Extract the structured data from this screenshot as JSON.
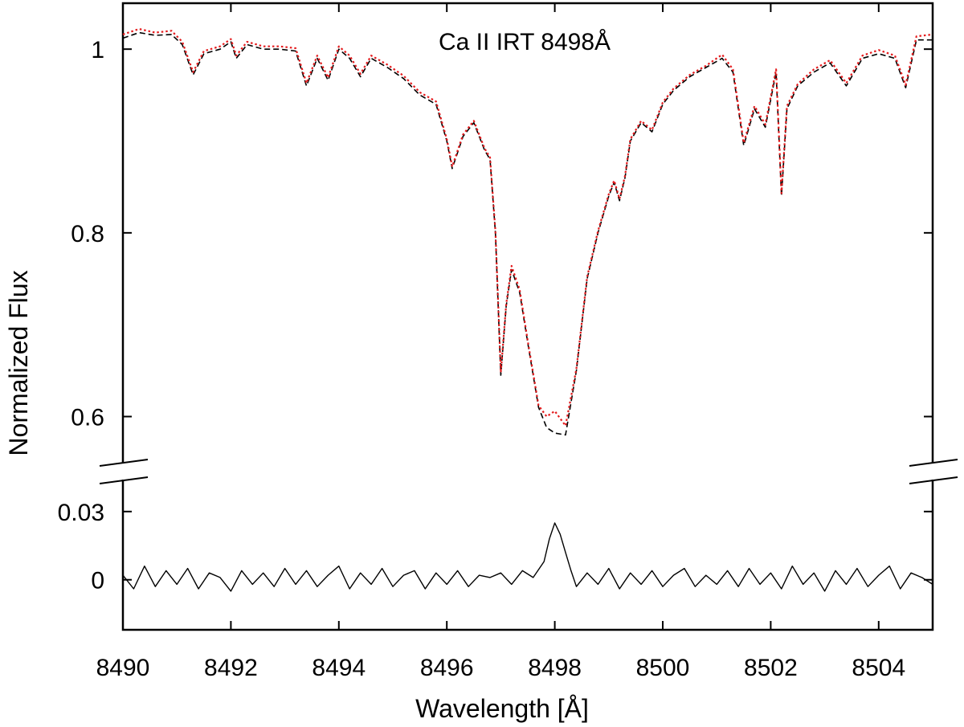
{
  "chart_data": {
    "type": "line",
    "title": "",
    "annotation": "Ca II IRT 8498Å",
    "xlabel": "Wavelength [Å]",
    "ylabel": "Normalized Flux",
    "xlim": [
      8490,
      8505
    ],
    "x_ticks": [
      8490,
      8492,
      8494,
      8496,
      8498,
      8500,
      8502,
      8504
    ],
    "x_tick_labels": [
      "8490",
      "8492",
      "8494",
      "8496",
      "8498",
      "8500",
      "8502",
      "8504"
    ],
    "broken_axis": true,
    "upper_panel": {
      "ylim": [
        0.555,
        1.05
      ],
      "y_ticks": [
        0.6,
        0.8,
        1.0
      ],
      "y_tick_labels": [
        "0.6",
        "0.8",
        "1"
      ]
    },
    "lower_panel": {
      "ylim": [
        -0.022,
        0.043
      ],
      "y_ticks": [
        0,
        0.03
      ],
      "y_tick_labels": [
        "0",
        "0.03"
      ]
    },
    "series": [
      {
        "panel": "upper",
        "style": "dashed",
        "color": "#000000",
        "x": [
          8490.0,
          8490.3,
          8490.6,
          8490.9,
          8491.1,
          8491.3,
          8491.5,
          8491.8,
          8492.0,
          8492.1,
          8492.3,
          8492.6,
          8492.9,
          8493.2,
          8493.4,
          8493.6,
          8493.8,
          8494.0,
          8494.2,
          8494.4,
          8494.6,
          8494.9,
          8495.2,
          8495.5,
          8495.8,
          8496.0,
          8496.1,
          8496.3,
          8496.5,
          8496.7,
          8496.8,
          8496.9,
          8497.0,
          8497.1,
          8497.2,
          8497.35,
          8497.5,
          8497.7,
          8497.85,
          8498.0,
          8498.2,
          8498.4,
          8498.6,
          8498.8,
          8499.0,
          8499.1,
          8499.2,
          8499.3,
          8499.4,
          8499.6,
          8499.8,
          8500.0,
          8500.2,
          8500.5,
          8500.8,
          8501.1,
          8501.3,
          8501.5,
          8501.7,
          8501.9,
          8502.1,
          8502.2,
          8502.3,
          8502.5,
          8502.8,
          8503.1,
          8503.4,
          8503.7,
          8504.0,
          8504.3,
          8504.5,
          8504.7,
          8505.0
        ],
        "y": [
          1.012,
          1.018,
          1.015,
          1.016,
          1.005,
          0.972,
          0.995,
          1.0,
          1.008,
          0.99,
          1.005,
          1.0,
          1.0,
          0.998,
          0.96,
          0.99,
          0.966,
          1.0,
          0.99,
          0.97,
          0.99,
          0.98,
          0.968,
          0.95,
          0.94,
          0.9,
          0.87,
          0.905,
          0.92,
          0.89,
          0.88,
          0.8,
          0.645,
          0.72,
          0.76,
          0.735,
          0.68,
          0.61,
          0.588,
          0.582,
          0.58,
          0.65,
          0.75,
          0.8,
          0.84,
          0.855,
          0.835,
          0.86,
          0.9,
          0.92,
          0.91,
          0.94,
          0.955,
          0.97,
          0.98,
          0.99,
          0.975,
          0.895,
          0.935,
          0.915,
          0.975,
          0.84,
          0.935,
          0.96,
          0.975,
          0.985,
          0.96,
          0.99,
          0.995,
          0.99,
          0.958,
          1.01,
          1.01
        ]
      },
      {
        "panel": "upper",
        "style": "dotted",
        "color": "#e41a1c",
        "x": [
          8490.0,
          8490.3,
          8490.6,
          8490.9,
          8491.1,
          8491.3,
          8491.5,
          8491.8,
          8492.0,
          8492.1,
          8492.3,
          8492.6,
          8492.9,
          8493.2,
          8493.4,
          8493.6,
          8493.8,
          8494.0,
          8494.2,
          8494.4,
          8494.6,
          8494.9,
          8495.2,
          8495.5,
          8495.8,
          8496.0,
          8496.1,
          8496.3,
          8496.5,
          8496.7,
          8496.8,
          8496.9,
          8497.0,
          8497.1,
          8497.2,
          8497.35,
          8497.5,
          8497.7,
          8497.85,
          8498.0,
          8498.2,
          8498.4,
          8498.6,
          8498.8,
          8499.0,
          8499.1,
          8499.2,
          8499.3,
          8499.4,
          8499.6,
          8499.8,
          8500.0,
          8500.2,
          8500.5,
          8500.8,
          8501.1,
          8501.3,
          8501.5,
          8501.7,
          8501.9,
          8502.1,
          8502.2,
          8502.3,
          8502.5,
          8502.8,
          8503.1,
          8503.4,
          8503.7,
          8504.0,
          8504.3,
          8504.5,
          8504.7,
          8505.0
        ],
        "y": [
          1.016,
          1.022,
          1.018,
          1.02,
          1.008,
          0.975,
          0.998,
          1.003,
          1.011,
          0.993,
          1.008,
          1.003,
          1.003,
          1.001,
          0.963,
          0.993,
          0.969,
          1.003,
          0.993,
          0.973,
          0.993,
          0.983,
          0.971,
          0.953,
          0.943,
          0.902,
          0.872,
          0.907,
          0.922,
          0.892,
          0.882,
          0.802,
          0.648,
          0.722,
          0.764,
          0.738,
          0.682,
          0.612,
          0.6,
          0.606,
          0.59,
          0.652,
          0.752,
          0.802,
          0.842,
          0.857,
          0.837,
          0.862,
          0.902,
          0.922,
          0.912,
          0.942,
          0.957,
          0.972,
          0.982,
          0.994,
          0.978,
          0.898,
          0.938,
          0.918,
          0.978,
          0.843,
          0.938,
          0.962,
          0.978,
          0.988,
          0.963,
          0.993,
          0.999,
          0.993,
          0.961,
          1.014,
          1.016
        ]
      },
      {
        "panel": "lower",
        "style": "solid",
        "color": "#000000",
        "x": [
          8490.0,
          8490.2,
          8490.4,
          8490.6,
          8490.8,
          8491.0,
          8491.2,
          8491.4,
          8491.6,
          8491.8,
          8492.0,
          8492.2,
          8492.4,
          8492.6,
          8492.8,
          8493.0,
          8493.2,
          8493.4,
          8493.6,
          8493.8,
          8494.0,
          8494.2,
          8494.4,
          8494.6,
          8494.8,
          8495.0,
          8495.2,
          8495.4,
          8495.6,
          8495.8,
          8496.0,
          8496.2,
          8496.4,
          8496.6,
          8496.8,
          8497.0,
          8497.2,
          8497.4,
          8497.6,
          8497.8,
          8497.9,
          8498.0,
          8498.1,
          8498.2,
          8498.3,
          8498.4,
          8498.6,
          8498.8,
          8499.0,
          8499.2,
          8499.4,
          8499.6,
          8499.8,
          8500.0,
          8500.2,
          8500.4,
          8500.6,
          8500.8,
          8501.0,
          8501.2,
          8501.4,
          8501.6,
          8501.8,
          8502.0,
          8502.2,
          8502.4,
          8502.6,
          8502.8,
          8503.0,
          8503.2,
          8503.4,
          8503.6,
          8503.8,
          8504.0,
          8504.2,
          8504.4,
          8504.6,
          8504.8,
          8505.0
        ],
        "y": [
          0.002,
          -0.004,
          0.006,
          -0.003,
          0.004,
          -0.002,
          0.005,
          -0.004,
          0.003,
          0.001,
          -0.005,
          0.004,
          -0.002,
          0.003,
          -0.003,
          0.005,
          -0.002,
          0.004,
          -0.003,
          0.002,
          0.006,
          -0.004,
          0.003,
          -0.002,
          0.005,
          -0.003,
          0.002,
          0.004,
          -0.004,
          0.003,
          -0.002,
          0.004,
          -0.003,
          0.002,
          0.001,
          0.003,
          -0.002,
          0.004,
          0.001,
          0.008,
          0.018,
          0.025,
          0.02,
          0.012,
          0.004,
          -0.003,
          0.003,
          -0.002,
          0.005,
          -0.004,
          0.003,
          -0.002,
          0.004,
          -0.003,
          0.002,
          0.005,
          -0.003,
          0.002,
          -0.002,
          0.004,
          -0.003,
          0.005,
          -0.002,
          0.003,
          -0.004,
          0.006,
          -0.002,
          0.003,
          -0.005,
          0.004,
          -0.002,
          0.005,
          -0.003,
          0.002,
          0.006,
          -0.004,
          0.003,
          0.001,
          -0.002
        ]
      }
    ]
  }
}
